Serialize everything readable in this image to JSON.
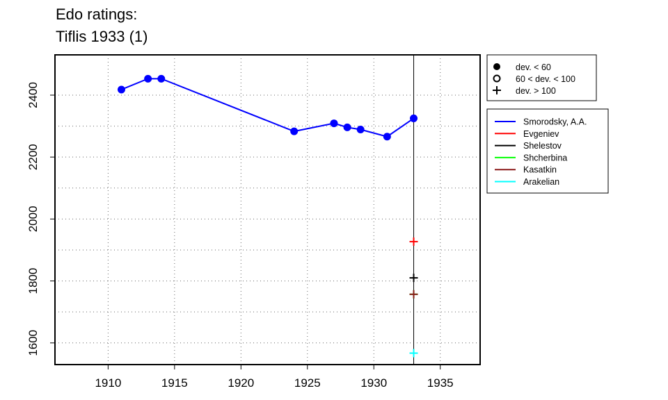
{
  "title": {
    "line1": "Edo ratings:",
    "line2": "Tiflis 1933 (1)"
  },
  "chart_data": {
    "type": "line",
    "xlim": [
      1906,
      1938
    ],
    "ylim": [
      1530,
      2530
    ],
    "x_ticks": [
      1910,
      1915,
      1920,
      1925,
      1930,
      1935
    ],
    "y_ticks": [
      1600,
      1800,
      2000,
      2200,
      2400
    ],
    "x_grid": [
      1910,
      1915,
      1920,
      1925,
      1930,
      1935
    ],
    "y_grid": [
      1600,
      1700,
      1800,
      1900,
      2000,
      2100,
      2200,
      2300,
      2400
    ],
    "grid": true,
    "event_year": 1933,
    "series": [
      {
        "name": "Smorodsky, A.A.",
        "color": "#0000ff",
        "marker": "dot",
        "x": [
          1911,
          1913,
          1914,
          1924,
          1927,
          1928,
          1929,
          1931,
          1933
        ],
        "y": [
          2418,
          2453,
          2453,
          2283,
          2309,
          2296,
          2289,
          2266,
          2325
        ]
      },
      {
        "name": "Evgeniev",
        "color": "#ff0000",
        "marker": "plus",
        "x": [
          1933
        ],
        "y": [
          1927
        ]
      },
      {
        "name": "Shelestov",
        "color": "#000000",
        "marker": "plus",
        "x": [
          1933
        ],
        "y": [
          1810
        ]
      },
      {
        "name": "Shcherbina",
        "color": "#00ff00",
        "marker": "plus",
        "x": [
          1933
        ],
        "y": [
          1757
        ]
      },
      {
        "name": "Kasatkin",
        "color": "#8b1a1a",
        "marker": "plus",
        "x": [
          1933
        ],
        "y": [
          1757
        ]
      },
      {
        "name": "Arakelian",
        "color": "#00ffff",
        "marker": "plus",
        "x": [
          1933
        ],
        "y": [
          1567
        ]
      }
    ],
    "marker_legend": [
      {
        "symbol": "dot",
        "label": "dev. < 60"
      },
      {
        "symbol": "circle",
        "label": "60 < dev. < 100"
      },
      {
        "symbol": "plus",
        "label": "dev. > 100"
      }
    ],
    "legend_position": "right"
  }
}
